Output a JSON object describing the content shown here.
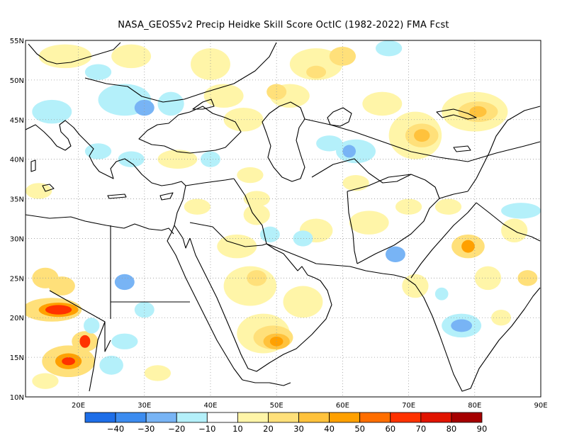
{
  "title": "NASA_GEOS5v2 Precip Heidke Skill Score OctIC (1982-2022) FMA Fcst",
  "map": {
    "lat_ticks": [
      "55N",
      "50N",
      "45N",
      "40N",
      "35N",
      "30N",
      "25N",
      "20N",
      "15N",
      "10N"
    ],
    "lat_values": [
      55,
      50,
      45,
      40,
      35,
      30,
      25,
      20,
      15,
      10
    ],
    "lon_ticks": [
      "20E",
      "30E",
      "40E",
      "50E",
      "60E",
      "70E",
      "80E",
      "90E"
    ],
    "lon_values": [
      20,
      30,
      40,
      50,
      60,
      70,
      80,
      90
    ],
    "lon_range": [
      12,
      90
    ],
    "lat_range": [
      10,
      55
    ],
    "grid": true
  },
  "colorbar": {
    "labels": [
      "−40",
      "−30",
      "−20",
      "−10",
      "10",
      "20",
      "30",
      "40",
      "50",
      "60",
      "70",
      "80",
      "90"
    ],
    "colors": [
      "#1e6ee8",
      "#3c8cf0",
      "#78b4f5",
      "#b4f0fa",
      "#ffffff",
      "#fff5a8",
      "#ffe07a",
      "#ffc23c",
      "#ffa000",
      "#ff6e00",
      "#ff3200",
      "#e11400",
      "#a50000"
    ]
  },
  "colors": {
    "coast": "#000000",
    "grid": "#9a9a9a"
  },
  "fields": [
    {
      "lon": 16,
      "lat": 21,
      "rx": 4.5,
      "ry": 1.5,
      "c": "#ffe07a"
    },
    {
      "lon": 17,
      "lat": 21,
      "rx": 3,
      "ry": 0.9,
      "c": "#ffa000"
    },
    {
      "lon": 17,
      "lat": 21,
      "rx": 2,
      "ry": 0.6,
      "c": "#ff3200"
    },
    {
      "lon": 17.5,
      "lat": 24,
      "rx": 2,
      "ry": 1.2,
      "c": "#ffe07a"
    },
    {
      "lon": 21,
      "lat": 17,
      "rx": 2,
      "ry": 1.3,
      "c": "#ffe07a"
    },
    {
      "lon": 21,
      "lat": 17,
      "rx": 0.8,
      "ry": 0.8,
      "c": "#ff3200"
    },
    {
      "lon": 18.5,
      "lat": 14.5,
      "rx": 4,
      "ry": 2,
      "c": "#ffe07a"
    },
    {
      "lon": 18.5,
      "lat": 14.5,
      "rx": 2,
      "ry": 1,
      "c": "#ffa000"
    },
    {
      "lon": 18.5,
      "lat": 14.5,
      "rx": 1,
      "ry": 0.5,
      "c": "#ff3200"
    },
    {
      "lon": 15,
      "lat": 25,
      "rx": 2,
      "ry": 1.3,
      "c": "#ffe07a"
    },
    {
      "lon": 25,
      "lat": 14,
      "rx": 1.8,
      "ry": 1.2,
      "c": "#b4f0fa"
    },
    {
      "lon": 22,
      "lat": 19,
      "rx": 1.2,
      "ry": 1,
      "c": "#b4f0fa"
    },
    {
      "lon": 27,
      "lat": 24.5,
      "rx": 1.5,
      "ry": 1,
      "c": "#78b4f5"
    },
    {
      "lon": 30,
      "lat": 21,
      "rx": 1.5,
      "ry": 1,
      "c": "#b4f0fa"
    },
    {
      "lon": 27,
      "lat": 17,
      "rx": 2,
      "ry": 1,
      "c": "#b4f0fa"
    },
    {
      "lon": 15,
      "lat": 12,
      "rx": 2,
      "ry": 1,
      "c": "#fff5a8"
    },
    {
      "lon": 32,
      "lat": 13,
      "rx": 2,
      "ry": 1,
      "c": "#fff5a8"
    },
    {
      "lon": 48,
      "lat": 18,
      "rx": 4,
      "ry": 2.5,
      "c": "#fff5a8"
    },
    {
      "lon": 49.5,
      "lat": 17.5,
      "rx": 3,
      "ry": 1.5,
      "c": "#ffe07a"
    },
    {
      "lon": 50,
      "lat": 17,
      "rx": 2,
      "ry": 1,
      "c": "#ffc23c"
    },
    {
      "lon": 50,
      "lat": 17,
      "rx": 1,
      "ry": 0.6,
      "c": "#ffa000"
    },
    {
      "lon": 46,
      "lat": 24,
      "rx": 4,
      "ry": 2.5,
      "c": "#fff5a8"
    },
    {
      "lon": 47,
      "lat": 25,
      "rx": 1.5,
      "ry": 1,
      "c": "#ffe07a"
    },
    {
      "lon": 54,
      "lat": 22,
      "rx": 3,
      "ry": 2,
      "c": "#fff5a8"
    },
    {
      "lon": 44,
      "lat": 29,
      "rx": 3,
      "ry": 1.5,
      "c": "#fff5a8"
    },
    {
      "lon": 47,
      "lat": 33,
      "rx": 2,
      "ry": 1.3,
      "c": "#fff5a8"
    },
    {
      "lon": 56,
      "lat": 31,
      "rx": 2.5,
      "ry": 1.5,
      "c": "#fff5a8"
    },
    {
      "lon": 49,
      "lat": 30.5,
      "rx": 1.5,
      "ry": 1,
      "c": "#b4f0fa"
    },
    {
      "lon": 54,
      "lat": 30,
      "rx": 1.5,
      "ry": 1,
      "c": "#b4f0fa"
    },
    {
      "lon": 64,
      "lat": 32,
      "rx": 3,
      "ry": 1.5,
      "c": "#fff5a8"
    },
    {
      "lon": 71,
      "lat": 24,
      "rx": 2,
      "ry": 1.5,
      "c": "#fff5a8"
    },
    {
      "lon": 68,
      "lat": 28,
      "rx": 1.5,
      "ry": 1,
      "c": "#78b4f5"
    },
    {
      "lon": 75,
      "lat": 23,
      "rx": 1,
      "ry": 0.8,
      "c": "#b4f0fa"
    },
    {
      "lon": 79,
      "lat": 29,
      "rx": 2.5,
      "ry": 1.5,
      "c": "#ffe07a"
    },
    {
      "lon": 79,
      "lat": 29,
      "rx": 1,
      "ry": 0.8,
      "c": "#ffa000"
    },
    {
      "lon": 82,
      "lat": 25,
      "rx": 2,
      "ry": 1.5,
      "c": "#fff5a8"
    },
    {
      "lon": 78,
      "lat": 19,
      "rx": 3,
      "ry": 1.5,
      "c": "#b4f0fa"
    },
    {
      "lon": 78,
      "lat": 19,
      "rx": 1.6,
      "ry": 0.8,
      "c": "#78b4f5"
    },
    {
      "lon": 84,
      "lat": 20,
      "rx": 1.5,
      "ry": 1,
      "c": "#fff5a8"
    },
    {
      "lon": 88,
      "lat": 25,
      "rx": 1.5,
      "ry": 1,
      "c": "#ffe07a"
    },
    {
      "lon": 86,
      "lat": 31,
      "rx": 2,
      "ry": 1.5,
      "c": "#fff5a8"
    },
    {
      "lon": 87,
      "lat": 33.5,
      "rx": 3,
      "ry": 1,
      "c": "#b4f0fa"
    },
    {
      "lon": 76,
      "lat": 34,
      "rx": 2,
      "ry": 1,
      "c": "#fff5a8"
    },
    {
      "lon": 70,
      "lat": 34,
      "rx": 2,
      "ry": 1,
      "c": "#fff5a8"
    },
    {
      "lon": 62,
      "lat": 37,
      "rx": 2,
      "ry": 1,
      "c": "#fff5a8"
    },
    {
      "lon": 71,
      "lat": 43,
      "rx": 4,
      "ry": 3,
      "c": "#fff5a8"
    },
    {
      "lon": 72,
      "lat": 43,
      "rx": 2.5,
      "ry": 1.5,
      "c": "#ffe07a"
    },
    {
      "lon": 72,
      "lat": 43,
      "rx": 1.2,
      "ry": 0.8,
      "c": "#ffc23c"
    },
    {
      "lon": 80,
      "lat": 46,
      "rx": 5,
      "ry": 2.5,
      "c": "#fff5a8"
    },
    {
      "lon": 80.5,
      "lat": 46,
      "rx": 3,
      "ry": 1.3,
      "c": "#ffe07a"
    },
    {
      "lon": 80.5,
      "lat": 46,
      "rx": 1.3,
      "ry": 0.7,
      "c": "#ffc23c"
    },
    {
      "lon": 56,
      "lat": 52,
      "rx": 4,
      "ry": 2,
      "c": "#fff5a8"
    },
    {
      "lon": 56,
      "lat": 51,
      "rx": 1.5,
      "ry": 0.8,
      "c": "#ffe07a"
    },
    {
      "lon": 60,
      "lat": 53,
      "rx": 2,
      "ry": 1.2,
      "c": "#ffe07a"
    },
    {
      "lon": 52,
      "lat": 48,
      "rx": 3,
      "ry": 1.5,
      "c": "#fff5a8"
    },
    {
      "lon": 50,
      "lat": 48.5,
      "rx": 1.5,
      "ry": 1,
      "c": "#ffe07a"
    },
    {
      "lon": 66,
      "lat": 47,
      "rx": 3,
      "ry": 1.5,
      "c": "#fff5a8"
    },
    {
      "lon": 67,
      "lat": 54,
      "rx": 2,
      "ry": 1,
      "c": "#b4f0fa"
    },
    {
      "lon": 62,
      "lat": 41,
      "rx": 3,
      "ry": 1.5,
      "c": "#b4f0fa"
    },
    {
      "lon": 61,
      "lat": 41,
      "rx": 1,
      "ry": 0.8,
      "c": "#78b4f5"
    },
    {
      "lon": 58,
      "lat": 42,
      "rx": 2,
      "ry": 1,
      "c": "#b4f0fa"
    },
    {
      "lon": 45,
      "lat": 45,
      "rx": 3,
      "ry": 1.5,
      "c": "#fff5a8"
    },
    {
      "lon": 42,
      "lat": 48,
      "rx": 3,
      "ry": 1.5,
      "c": "#fff5a8"
    },
    {
      "lon": 40,
      "lat": 52,
      "rx": 3,
      "ry": 2,
      "c": "#fff5a8"
    },
    {
      "lon": 28,
      "lat": 53,
      "rx": 3,
      "ry": 1.5,
      "c": "#fff5a8"
    },
    {
      "lon": 18,
      "lat": 53,
      "rx": 4,
      "ry": 1.5,
      "c": "#fff5a8"
    },
    {
      "lon": 23,
      "lat": 51,
      "rx": 2,
      "ry": 1,
      "c": "#b4f0fa"
    },
    {
      "lon": 16,
      "lat": 46,
      "rx": 3,
      "ry": 1.5,
      "c": "#b4f0fa"
    },
    {
      "lon": 27,
      "lat": 47.5,
      "rx": 4,
      "ry": 2,
      "c": "#b4f0fa"
    },
    {
      "lon": 30,
      "lat": 46.5,
      "rx": 1.5,
      "ry": 1,
      "c": "#78b4f5"
    },
    {
      "lon": 34,
      "lat": 47,
      "rx": 2,
      "ry": 1.5,
      "c": "#b4f0fa"
    },
    {
      "lon": 23,
      "lat": 41,
      "rx": 2,
      "ry": 1,
      "c": "#b4f0fa"
    },
    {
      "lon": 28,
      "lat": 40,
      "rx": 2,
      "ry": 1,
      "c": "#b4f0fa"
    },
    {
      "lon": 35,
      "lat": 40,
      "rx": 3,
      "ry": 1.2,
      "c": "#fff5a8"
    },
    {
      "lon": 40,
      "lat": 40,
      "rx": 1.5,
      "ry": 1,
      "c": "#b4f0fa"
    },
    {
      "lon": 46,
      "lat": 38,
      "rx": 2,
      "ry": 1,
      "c": "#fff5a8"
    },
    {
      "lon": 47,
      "lat": 35,
      "rx": 2,
      "ry": 1,
      "c": "#fff5a8"
    },
    {
      "lon": 38,
      "lat": 34,
      "rx": 2,
      "ry": 1,
      "c": "#fff5a8"
    },
    {
      "lon": 14,
      "lat": 36,
      "rx": 2,
      "ry": 1,
      "c": "#fff5a8"
    }
  ]
}
